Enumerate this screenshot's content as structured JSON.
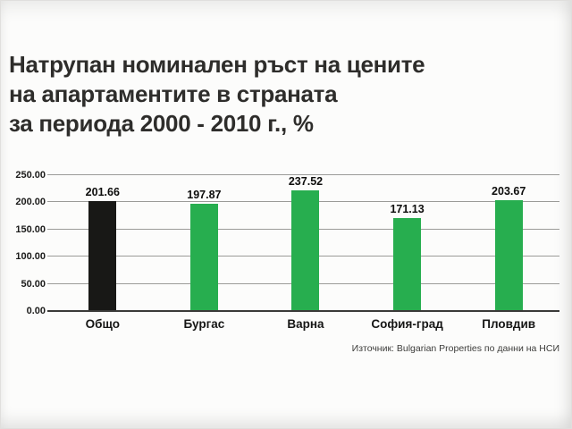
{
  "title": {
    "lines": [
      "Натрупан номинален ръст на цените",
      "на апартаментите в страната",
      "за периода 2000 - 2010 г., %"
    ]
  },
  "source": "Източник: Bulgarian Properties по данни на НСИ",
  "colors": {
    "bar_green": "#27ae4f",
    "bar_black": "#181816",
    "grid": "#9b9b98",
    "axis": "#3a3a38",
    "title_text": "#2e2d2b"
  },
  "chart_data": {
    "type": "bar",
    "title": "Натрупан номинален ръст на цените на апартаментите в страната за периода 2000 - 2010 г., %",
    "categories": [
      "Общо",
      "Бургас",
      "Варна",
      "София-град",
      "Пловдив"
    ],
    "values": [
      201.66,
      197.87,
      237.52,
      171.13,
      203.67
    ],
    "value_labels": [
      "201.66",
      "197.87",
      "237.52",
      "171.13",
      "203.67"
    ],
    "bar_colors": [
      "#181816",
      "#27ae4f",
      "#27ae4f",
      "#27ae4f",
      "#27ae4f"
    ],
    "xlabel": "",
    "ylabel": "",
    "ylim": [
      0,
      250
    ],
    "yticks": [
      0,
      50,
      100,
      150,
      200,
      250
    ],
    "ytick_labels": [
      "0.00",
      "50.00",
      "100.00",
      "150.00",
      "200.00",
      "250.00"
    ],
    "grid": true,
    "legend": false,
    "annotation": "Източник: Bulgarian Properties по данни на НСИ"
  }
}
